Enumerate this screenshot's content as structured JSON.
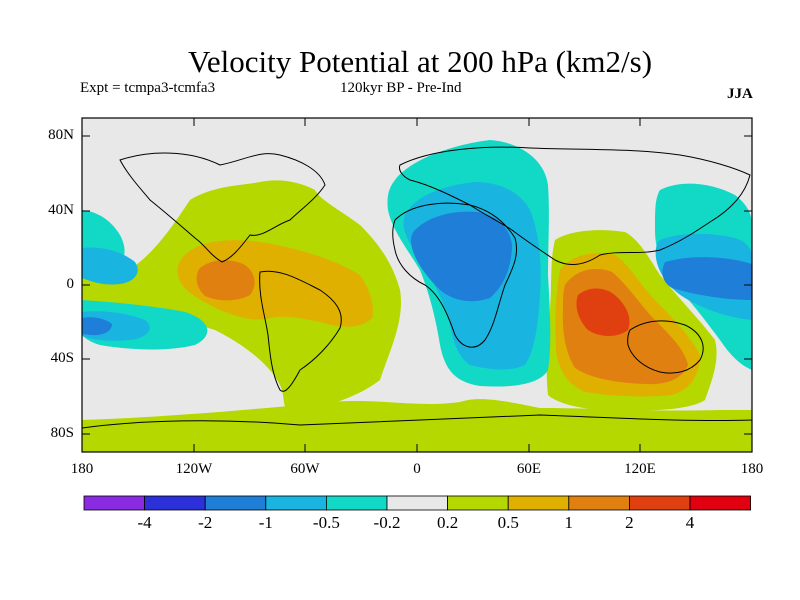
{
  "title": "Velocity Potential at 200 hPa (km2/s)",
  "experiment": "Expt = tcmpa3-tcmfa3",
  "period": "120kyr BP - Pre-Ind",
  "season": "JJA",
  "lat_labels": [
    "80N",
    "40N",
    "0",
    "40S",
    "80S"
  ],
  "lon_labels": [
    "180",
    "120W",
    "60W",
    "0",
    "60E",
    "120E",
    "180"
  ],
  "colorbar": {
    "levels": [
      "-4",
      "-2",
      "-1",
      "-0.5",
      "-0.2",
      "0.2",
      "0.5",
      "1",
      "2",
      "4"
    ],
    "colors": [
      "#8a2be2",
      "#2b30d8",
      "#1f7fd8",
      "#19b5e0",
      "#12d9c6",
      "#e8e8e8",
      "#b4d800",
      "#e0b000",
      "#e08010",
      "#e04010",
      "#e00010"
    ]
  },
  "field_colors": {
    "ocean_background": "#e8e8e8",
    "pos_0_2": "#b4d800",
    "pos_0_5": "#e0b000",
    "pos_1": "#e08010",
    "pos_2": "#e04010",
    "neg_0_2": "#12d9c6",
    "neg_0_5": "#19b5e0",
    "neg_1": "#1f7fd8"
  }
}
